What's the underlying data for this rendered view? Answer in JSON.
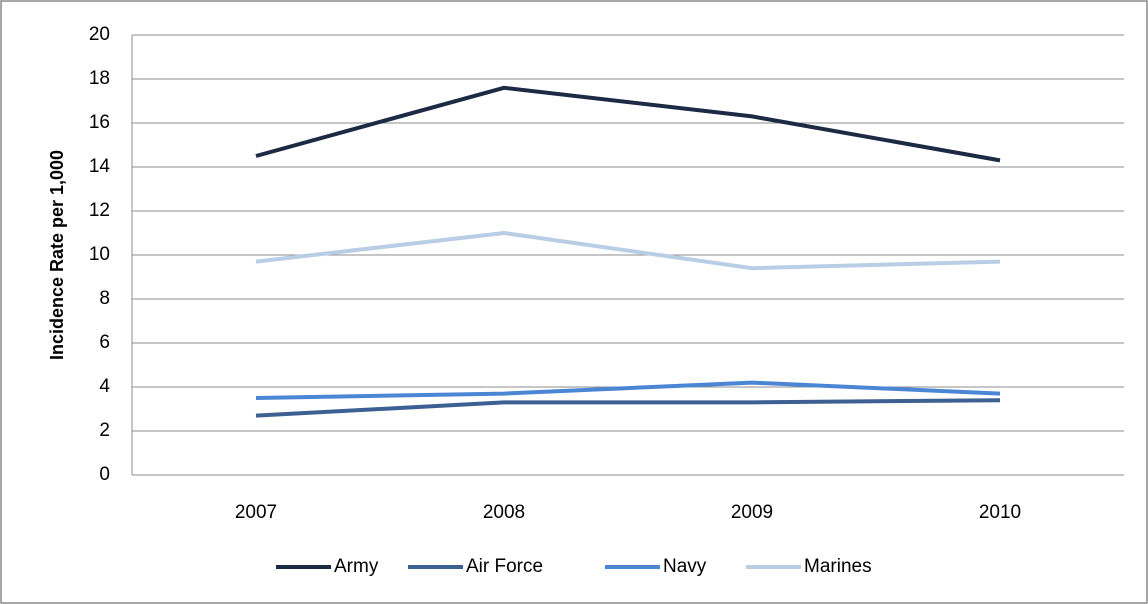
{
  "chart_data": {
    "type": "line",
    "y_label": "Incidence Rate per 1,000",
    "categories": [
      "2007",
      "2008",
      "2009",
      "2010"
    ],
    "series": [
      {
        "name": "Army",
        "color": "#1c2a44",
        "values": [
          14.5,
          17.6,
          16.3,
          14.3
        ]
      },
      {
        "name": "Air Force",
        "color": "#3b6091",
        "values": [
          2.7,
          3.3,
          3.3,
          3.4
        ]
      },
      {
        "name": "Navy",
        "color": "#4a86d4",
        "values": [
          3.5,
          3.7,
          4.2,
          3.7
        ]
      },
      {
        "name": "Marines",
        "color": "#b9cde5",
        "values": [
          9.7,
          11.0,
          9.4,
          9.7
        ]
      }
    ],
    "ylim": [
      0,
      20
    ],
    "yticks": [
      0,
      2,
      4,
      6,
      8,
      10,
      12,
      14,
      16,
      18,
      20
    ],
    "grid": true
  }
}
